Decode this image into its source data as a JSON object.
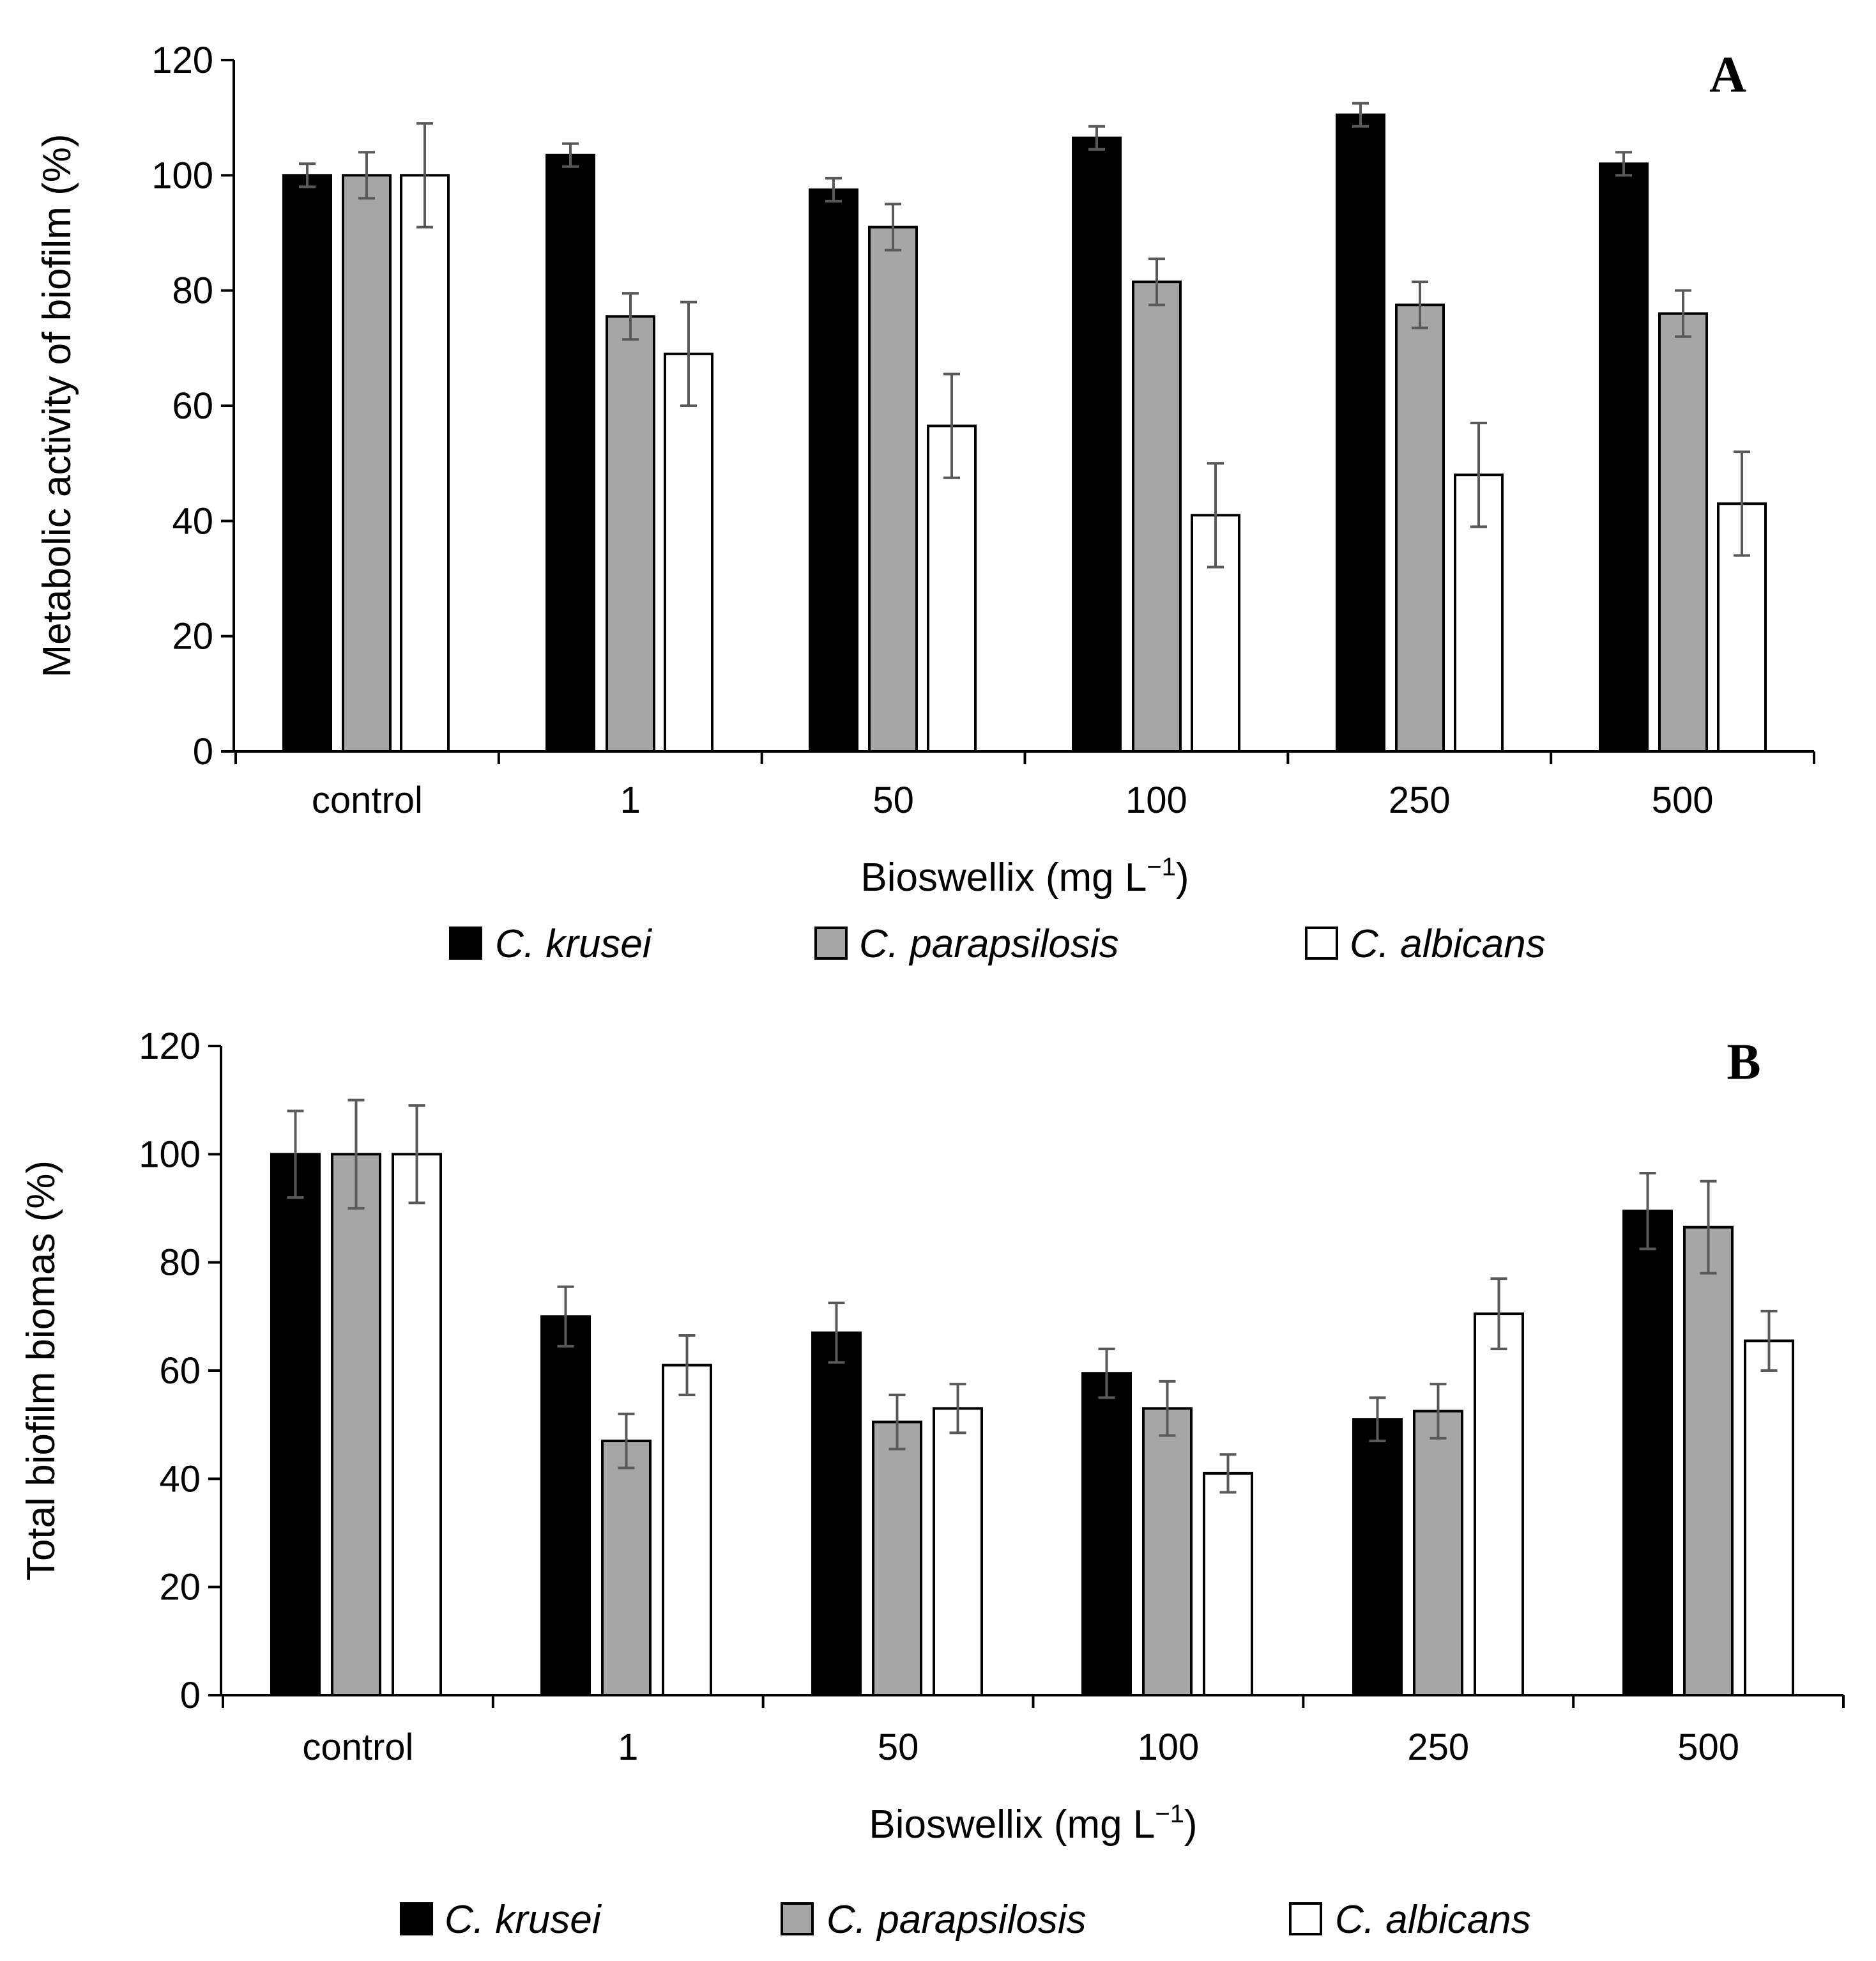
{
  "chart_data": [
    {
      "type": "bar",
      "panel_label": "A",
      "title": "",
      "xlabel": "Bioswellix (mg L",
      "xlabel_sup": "−1",
      "xlabel_close": ")",
      "ylabel": "Metabolic activity of biofilm (%)",
      "ylim": [
        0,
        120
      ],
      "yticks": [
        0,
        20,
        40,
        60,
        80,
        100,
        120
      ],
      "grid": false,
      "legend_position": "bottom",
      "categories": [
        "control",
        "1",
        "50",
        "100",
        "250",
        "500"
      ],
      "series": [
        {
          "name": "C. krusei",
          "color": "#000000",
          "values": [
            100,
            103.5,
            97.5,
            106.5,
            110.5,
            102
          ],
          "errors": [
            2,
            2,
            2,
            2,
            2,
            2
          ]
        },
        {
          "name": "C. parapsilosis",
          "color": "#a6a6a6",
          "values": [
            100,
            75.5,
            91,
            81.5,
            77.5,
            76
          ],
          "errors": [
            4,
            4,
            4,
            4,
            4,
            4
          ]
        },
        {
          "name": "C. albicans",
          "color": "#ffffff",
          "values": [
            100,
            69,
            56.5,
            41,
            48,
            43
          ],
          "errors": [
            9,
            9,
            9,
            9,
            9,
            9
          ]
        }
      ]
    },
    {
      "type": "bar",
      "panel_label": "B",
      "title": "",
      "xlabel": "Bioswellix (mg L",
      "xlabel_sup": "−1",
      "xlabel_close": ")",
      "ylabel": "Total biofilm biomas (%)",
      "ylim": [
        0,
        120
      ],
      "yticks": [
        0,
        20,
        40,
        60,
        80,
        100,
        120
      ],
      "grid": false,
      "legend_position": "bottom",
      "categories": [
        "control",
        "1",
        "50",
        "100",
        "250",
        "500"
      ],
      "series": [
        {
          "name": "C. krusei",
          "color": "#000000",
          "values": [
            100,
            70,
            67,
            59.5,
            51,
            89.5
          ],
          "errors": [
            8,
            5.5,
            5.5,
            4.5,
            4,
            7
          ]
        },
        {
          "name": "C. parapsilosis",
          "color": "#a6a6a6",
          "values": [
            100,
            47,
            50.5,
            53,
            52.5,
            86.5
          ],
          "errors": [
            10,
            5,
            5,
            5,
            5,
            8.5
          ]
        },
        {
          "name": "C. albicans",
          "color": "#ffffff",
          "values": [
            100,
            61,
            53,
            41,
            70.5,
            65.5
          ],
          "errors": [
            9,
            5.5,
            4.5,
            3.5,
            6.5,
            5.5
          ]
        }
      ]
    }
  ]
}
